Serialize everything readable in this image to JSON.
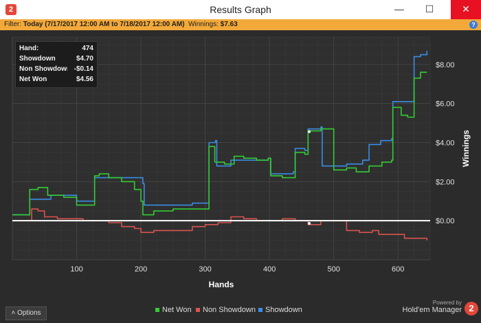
{
  "window": {
    "title": "Results Graph",
    "minimize": "—",
    "maximize": "☐",
    "close": "✕"
  },
  "filter": {
    "prefix": "Filter: ",
    "value": "Today (7/17/2017 12:00 AM to 7/18/2017 12:00 AM)",
    "winnings_label": "  Winnings: ",
    "winnings_value": "$7.63"
  },
  "tooltip": {
    "rows": [
      {
        "label": "Hand:",
        "value": "474"
      },
      {
        "label": "Showdown",
        "value": "$4.70"
      },
      {
        "label": "Non Showdown",
        "value": "-$0.14"
      },
      {
        "label": "Net Won",
        "value": "$4.56"
      }
    ]
  },
  "bottom": {
    "options_label": "Options",
    "powered_by": "Powered by",
    "brand_name": "Hold'em Manager",
    "brand_logo_text": "2"
  },
  "colors": {
    "net_won": "#33cc33",
    "non_showdown": "#d9534f",
    "showdown": "#3a8ee6",
    "zero_line": "#ffffff",
    "grid": "#3c3c3c"
  },
  "chart_data": {
    "type": "line",
    "xlabel": "Hands",
    "ylabel": "Winnings",
    "xlim": [
      0,
      650
    ],
    "ylim": [
      -2.0,
      9.4
    ],
    "xticks": [
      100,
      200,
      300,
      400,
      500,
      600
    ],
    "xtick_labels": [
      "100",
      "200",
      "300",
      "400",
      "500",
      "600"
    ],
    "yticks": [
      0,
      2,
      4,
      6,
      8
    ],
    "ytick_labels": [
      "$0.00",
      "$2.00",
      "$4.00",
      "$6.00",
      "$8.00"
    ],
    "legend_position": "bottom",
    "series": [
      {
        "name": "Net Won",
        "color": "#33cc33",
        "points": [
          [
            0,
            0.3
          ],
          [
            25,
            0.3
          ],
          [
            27,
            1.6
          ],
          [
            40,
            1.7
          ],
          [
            55,
            1.3
          ],
          [
            80,
            1.2
          ],
          [
            98,
            1.2
          ],
          [
            100,
            0.8
          ],
          [
            125,
            0.8
          ],
          [
            128,
            2.3
          ],
          [
            135,
            2.4
          ],
          [
            150,
            2.2
          ],
          [
            170,
            2.0
          ],
          [
            190,
            1.6
          ],
          [
            200,
            1.0
          ],
          [
            203,
            0.3
          ],
          [
            220,
            0.5
          ],
          [
            250,
            0.6
          ],
          [
            280,
            0.6
          ],
          [
            303,
            0.6
          ],
          [
            306,
            3.8
          ],
          [
            315,
            3.0
          ],
          [
            330,
            2.9
          ],
          [
            345,
            3.3
          ],
          [
            360,
            3.2
          ],
          [
            380,
            3.1
          ],
          [
            398,
            3.2
          ],
          [
            402,
            2.3
          ],
          [
            420,
            2.2
          ],
          [
            437,
            2.2
          ],
          [
            440,
            3.5
          ],
          [
            455,
            3.4
          ],
          [
            460,
            4.6
          ],
          [
            480,
            4.7
          ],
          [
            500,
            2.6
          ],
          [
            520,
            2.7
          ],
          [
            535,
            2.5
          ],
          [
            555,
            2.8
          ],
          [
            573,
            2.8
          ],
          [
            575,
            3.0
          ],
          [
            590,
            3.1
          ],
          [
            592,
            5.8
          ],
          [
            605,
            5.4
          ],
          [
            615,
            5.3
          ],
          [
            622,
            5.3
          ],
          [
            625,
            7.3
          ],
          [
            635,
            7.6
          ],
          [
            645,
            7.6
          ]
        ]
      },
      {
        "name": "Non Showdown",
        "color": "#d9534f",
        "points": [
          [
            0,
            0.0
          ],
          [
            20,
            0.0
          ],
          [
            30,
            0.6
          ],
          [
            40,
            0.5
          ],
          [
            50,
            0.2
          ],
          [
            70,
            0.1
          ],
          [
            90,
            0.1
          ],
          [
            110,
            0.0
          ],
          [
            130,
            0.0
          ],
          [
            150,
            -0.1
          ],
          [
            170,
            -0.3
          ],
          [
            190,
            -0.4
          ],
          [
            200,
            -0.6
          ],
          [
            220,
            -0.5
          ],
          [
            250,
            -0.5
          ],
          [
            280,
            -0.3
          ],
          [
            300,
            -0.2
          ],
          [
            320,
            -0.1
          ],
          [
            340,
            0.2
          ],
          [
            360,
            0.1
          ],
          [
            380,
            0.0
          ],
          [
            400,
            0.0
          ],
          [
            420,
            0.1
          ],
          [
            440,
            0.0
          ],
          [
            460,
            -0.2
          ],
          [
            480,
            0.0
          ],
          [
            500,
            0.0
          ],
          [
            520,
            -0.5
          ],
          [
            540,
            -0.6
          ],
          [
            560,
            -0.5
          ],
          [
            570,
            -0.7
          ],
          [
            590,
            -0.7
          ],
          [
            610,
            -0.9
          ],
          [
            630,
            -0.9
          ],
          [
            645,
            -1.0
          ]
        ]
      },
      {
        "name": "Showdown",
        "color": "#3a8ee6",
        "points": [
          [
            0,
            0.3
          ],
          [
            25,
            0.3
          ],
          [
            27,
            1.1
          ],
          [
            55,
            1.1
          ],
          [
            60,
            1.3
          ],
          [
            98,
            1.3
          ],
          [
            100,
            1.0
          ],
          [
            125,
            1.0
          ],
          [
            128,
            2.2
          ],
          [
            200,
            2.2
          ],
          [
            203,
            1.9
          ],
          [
            205,
            0.8
          ],
          [
            230,
            0.8
          ],
          [
            280,
            0.9
          ],
          [
            303,
            0.9
          ],
          [
            306,
            4.0
          ],
          [
            316,
            4.1
          ],
          [
            318,
            2.8
          ],
          [
            340,
            3.1
          ],
          [
            360,
            3.1
          ],
          [
            380,
            3.1
          ],
          [
            398,
            3.2
          ],
          [
            402,
            2.4
          ],
          [
            437,
            2.5
          ],
          [
            440,
            3.7
          ],
          [
            455,
            3.6
          ],
          [
            460,
            4.7
          ],
          [
            480,
            4.8
          ],
          [
            482,
            2.8
          ],
          [
            520,
            2.9
          ],
          [
            535,
            2.9
          ],
          [
            545,
            3.1
          ],
          [
            555,
            3.9
          ],
          [
            573,
            4.1
          ],
          [
            590,
            4.2
          ],
          [
            592,
            6.1
          ],
          [
            620,
            6.1
          ],
          [
            625,
            8.4
          ],
          [
            635,
            8.5
          ],
          [
            645,
            8.7
          ]
        ]
      }
    ]
  }
}
